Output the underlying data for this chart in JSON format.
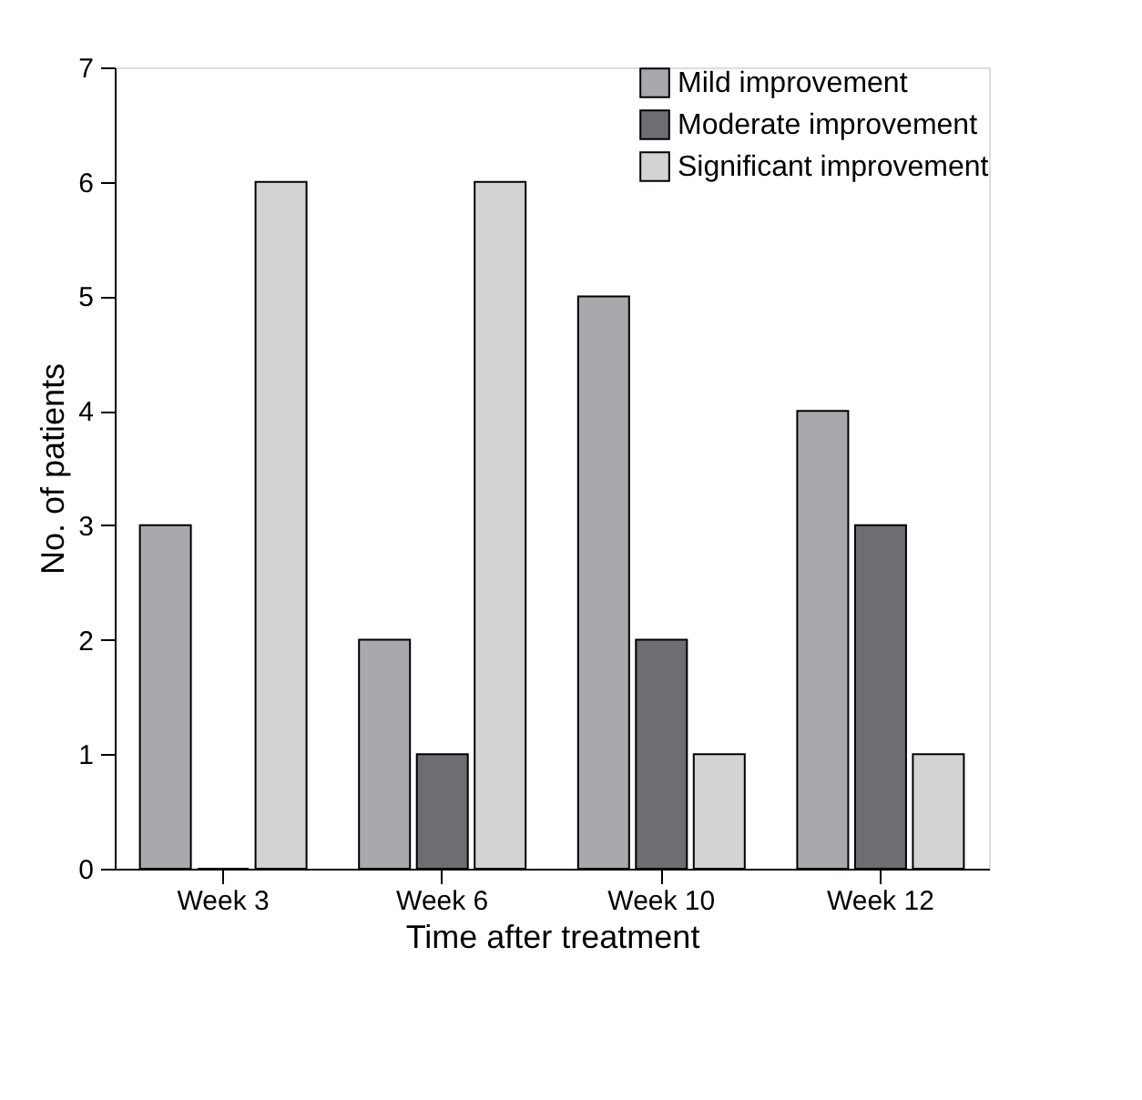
{
  "chart_data": {
    "type": "bar",
    "xlabel": "Time after treatment",
    "ylabel": "No. of patients",
    "categories": [
      "Week 3",
      "Week 6",
      "Week 10",
      "Week 12"
    ],
    "series": [
      {
        "name": "Mild improvement",
        "color": "#a7a9ac",
        "values": [
          3,
          2,
          5,
          4
        ]
      },
      {
        "name": "Moderate improvement",
        "color": "#6d6e71",
        "values": [
          0,
          1,
          2,
          3
        ]
      },
      {
        "name": "Significant improvement",
        "color": "#d1d3d4",
        "values": [
          6,
          6,
          1,
          1
        ]
      }
    ],
    "ylim": [
      0,
      7
    ],
    "yticks": [
      0,
      1,
      2,
      3,
      4,
      5,
      6,
      7
    ],
    "grid": false,
    "legend": "top right"
  }
}
